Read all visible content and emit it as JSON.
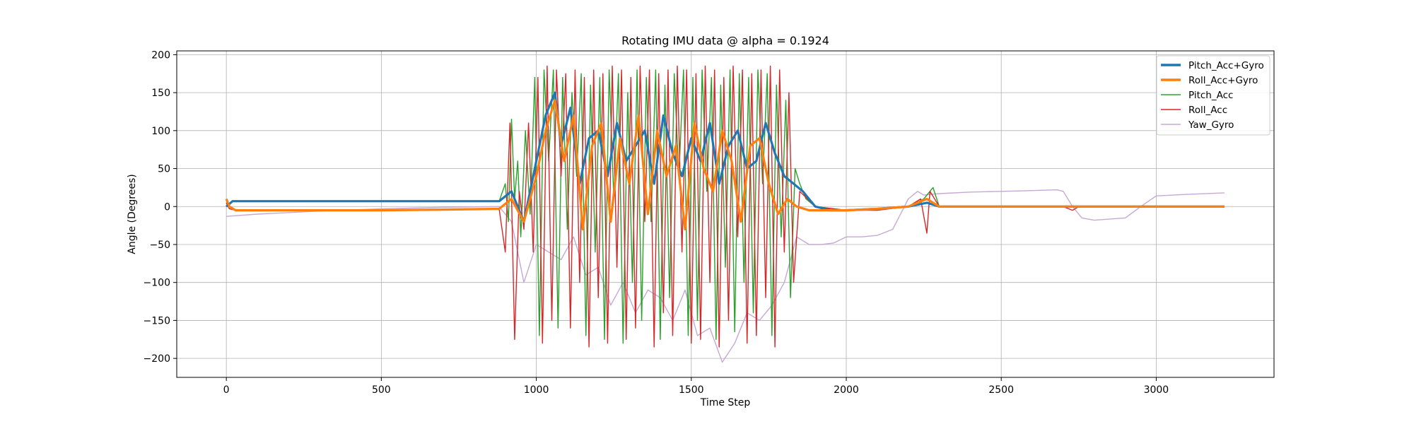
{
  "chart_data": {
    "type": "line",
    "title": "Rotating IMU data @ alpha = 0.1924",
    "xlabel": "Time Step",
    "ylabel": "Angle (Degrees)",
    "xlim": [
      -160,
      3380
    ],
    "ylim": [
      -225,
      205
    ],
    "xticks": [
      0,
      500,
      1000,
      1500,
      2000,
      2500,
      3000
    ],
    "xtick_labels": [
      "0",
      "500",
      "1000",
      "1500",
      "2000",
      "2500",
      "3000"
    ],
    "yticks": [
      -200,
      -150,
      -100,
      -50,
      0,
      50,
      100,
      150,
      200
    ],
    "ytick_labels": [
      "−200",
      "−150",
      "−100",
      "−50",
      "0",
      "50",
      "100",
      "150",
      "200"
    ],
    "grid": true,
    "legend_position": "top-right",
    "series": [
      {
        "name": "Pitch_Acc+Gyro",
        "color": "#1f77b4",
        "width": "thick",
        "x": [
          0,
          20,
          100,
          300,
          500,
          700,
          880,
          920,
          960,
          1000,
          1030,
          1060,
          1080,
          1110,
          1140,
          1170,
          1200,
          1230,
          1260,
          1290,
          1320,
          1350,
          1380,
          1410,
          1440,
          1470,
          1500,
          1530,
          1560,
          1590,
          1620,
          1650,
          1680,
          1710,
          1740,
          1770,
          1800,
          1830,
          1860,
          1900,
          1950,
          2000,
          2100,
          2200,
          2260,
          2300,
          2500,
          2700,
          2900,
          3100,
          3220
        ],
        "y": [
          0,
          7,
          7,
          7,
          7,
          7,
          7,
          20,
          -20,
          60,
          120,
          150,
          80,
          130,
          30,
          90,
          100,
          40,
          110,
          60,
          80,
          100,
          30,
          120,
          70,
          40,
          90,
          60,
          110,
          30,
          80,
          100,
          50,
          60,
          110,
          70,
          40,
          30,
          20,
          0,
          -5,
          -5,
          -3,
          0,
          5,
          0,
          0,
          0,
          0,
          0,
          0
        ]
      },
      {
        "name": "Roll_Acc+Gyro",
        "color": "#ff7f0e",
        "width": "thick",
        "x": [
          0,
          10,
          30,
          100,
          300,
          500,
          700,
          880,
          920,
          960,
          1000,
          1030,
          1060,
          1090,
          1120,
          1150,
          1180,
          1210,
          1240,
          1270,
          1300,
          1330,
          1360,
          1390,
          1420,
          1450,
          1480,
          1510,
          1540,
          1570,
          1600,
          1630,
          1660,
          1690,
          1720,
          1750,
          1780,
          1810,
          1840,
          1880,
          1950,
          2000,
          2100,
          2200,
          2260,
          2300,
          2500,
          2700,
          2900,
          3100,
          3220
        ],
        "y": [
          10,
          0,
          -5,
          -5,
          -5,
          -5,
          -4,
          -3,
          10,
          -20,
          40,
          100,
          140,
          60,
          120,
          -30,
          80,
          110,
          -20,
          90,
          30,
          120,
          -10,
          100,
          40,
          80,
          -30,
          110,
          50,
          20,
          100,
          60,
          -20,
          80,
          90,
          30,
          -10,
          10,
          0,
          -5,
          -5,
          -5,
          -3,
          0,
          10,
          0,
          0,
          0,
          0,
          0,
          0
        ]
      },
      {
        "name": "Pitch_Acc",
        "color": "#2ca02c",
        "width": "thin",
        "x": [
          0,
          20,
          100,
          300,
          500,
          700,
          880,
          900,
          910,
          920,
          930,
          940,
          950,
          965,
          980,
          995,
          1010,
          1025,
          1040,
          1055,
          1070,
          1085,
          1100,
          1115,
          1130,
          1145,
          1160,
          1175,
          1190,
          1205,
          1220,
          1235,
          1250,
          1265,
          1280,
          1295,
          1310,
          1325,
          1340,
          1355,
          1370,
          1385,
          1400,
          1415,
          1430,
          1445,
          1460,
          1475,
          1490,
          1505,
          1520,
          1535,
          1550,
          1565,
          1580,
          1595,
          1610,
          1625,
          1640,
          1655,
          1670,
          1685,
          1700,
          1715,
          1730,
          1745,
          1760,
          1775,
          1790,
          1805,
          1820,
          1835,
          1850,
          1870,
          1900,
          2000,
          2100,
          2200,
          2250,
          2280,
          2300,
          2500,
          2700,
          2900,
          3100,
          3220
        ],
        "y": [
          0,
          7,
          7,
          7,
          7,
          7,
          7,
          30,
          -20,
          115,
          10,
          60,
          -40,
          100,
          -10,
          170,
          -170,
          180,
          60,
          180,
          -160,
          170,
          -30,
          150,
          40,
          175,
          -170,
          160,
          -60,
          170,
          -175,
          180,
          10,
          175,
          -180,
          150,
          -100,
          180,
          -150,
          170,
          -20,
          180,
          -175,
          160,
          -120,
          175,
          40,
          180,
          -170,
          170,
          -150,
          180,
          20,
          170,
          -175,
          160,
          -80,
          180,
          -165,
          175,
          -100,
          170,
          -140,
          180,
          30,
          175,
          -170,
          160,
          -40,
          140,
          -120,
          50,
          30,
          10,
          0,
          -5,
          -3,
          0,
          10,
          25,
          0,
          0,
          0,
          0,
          0,
          0
        ]
      },
      {
        "name": "Roll_Acc",
        "color": "#d62728",
        "width": "thin",
        "x": [
          0,
          10,
          30,
          100,
          300,
          500,
          700,
          880,
          900,
          915,
          930,
          945,
          960,
          975,
          990,
          1005,
          1020,
          1035,
          1050,
          1065,
          1080,
          1095,
          1110,
          1125,
          1140,
          1155,
          1170,
          1185,
          1200,
          1215,
          1230,
          1245,
          1260,
          1275,
          1290,
          1305,
          1320,
          1335,
          1350,
          1365,
          1380,
          1395,
          1410,
          1425,
          1440,
          1455,
          1470,
          1485,
          1500,
          1515,
          1530,
          1545,
          1560,
          1575,
          1590,
          1605,
          1620,
          1635,
          1650,
          1665,
          1680,
          1695,
          1710,
          1725,
          1740,
          1755,
          1770,
          1785,
          1800,
          1815,
          1830,
          1850,
          1900,
          2000,
          2100,
          2200,
          2240,
          2260,
          2270,
          2300,
          2500,
          2700,
          2730,
          2750,
          2900,
          3100,
          3220
        ],
        "y": [
          5,
          -3,
          -5,
          -5,
          -5,
          -5,
          -4,
          -3,
          -60,
          110,
          -175,
          20,
          -30,
          110,
          -60,
          170,
          -180,
          185,
          -150,
          180,
          40,
          175,
          -160,
          180,
          -100,
          170,
          -185,
          180,
          -120,
          175,
          -180,
          185,
          -80,
          180,
          -175,
          170,
          -160,
          185,
          -20,
          180,
          -185,
          175,
          -140,
          180,
          -170,
          185,
          -60,
          180,
          -180,
          175,
          -175,
          185,
          -100,
          180,
          -185,
          170,
          -150,
          185,
          -40,
          180,
          -180,
          175,
          -170,
          180,
          -120,
          185,
          -185,
          180,
          -60,
          150,
          -100,
          20,
          0,
          -5,
          -5,
          0,
          10,
          -35,
          20,
          0,
          0,
          0,
          -5,
          0,
          0,
          0,
          0
        ]
      },
      {
        "name": "Yaw_Gyro",
        "color": "#c5a8d6",
        "width": "thin",
        "x": [
          0,
          100,
          300,
          500,
          700,
          880,
          920,
          960,
          1000,
          1040,
          1080,
          1120,
          1160,
          1200,
          1240,
          1280,
          1320,
          1360,
          1400,
          1440,
          1480,
          1520,
          1560,
          1600,
          1640,
          1680,
          1720,
          1760,
          1800,
          1840,
          1880,
          1920,
          1960,
          2000,
          2050,
          2100,
          2150,
          2200,
          2230,
          2250,
          2270,
          2300,
          2400,
          2500,
          2600,
          2680,
          2700,
          2730,
          2760,
          2800,
          2900,
          2950,
          3000,
          3100,
          3220
        ],
        "y": [
          -13,
          -10,
          -6,
          -3,
          -1,
          0,
          -20,
          -100,
          -50,
          -60,
          -70,
          -40,
          -90,
          -80,
          -130,
          -100,
          -140,
          -110,
          -120,
          -150,
          -110,
          -170,
          -160,
          -205,
          -180,
          -140,
          -150,
          -130,
          -100,
          -40,
          -50,
          -50,
          -48,
          -40,
          -40,
          -38,
          -30,
          10,
          20,
          15,
          16,
          17,
          19,
          20,
          21,
          22,
          20,
          0,
          -15,
          -18,
          -15,
          0,
          14,
          16,
          18
        ]
      }
    ]
  }
}
